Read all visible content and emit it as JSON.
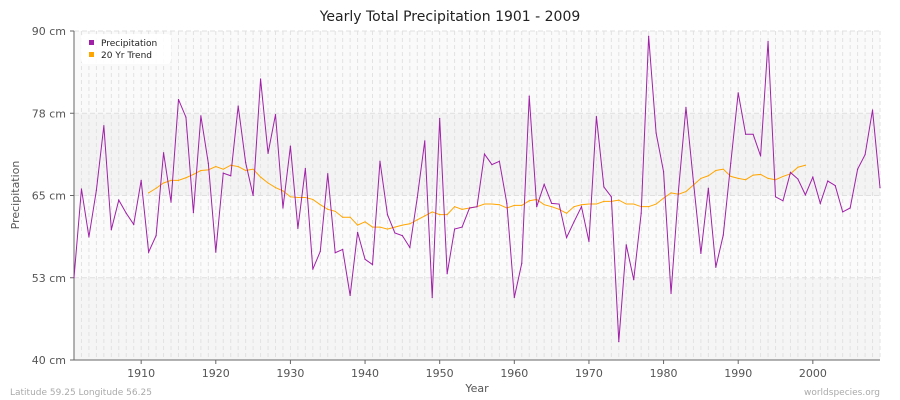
{
  "chart_data": {
    "type": "line",
    "title": "Yearly Total Precipitation 1901 - 2009",
    "xlabel": "Year",
    "ylabel": "Precipitation",
    "xlim": [
      1901,
      2009
    ],
    "ylim": [
      40,
      90
    ],
    "grid": true,
    "legend_position": "top-left",
    "y_ticks": [
      {
        "value": 40,
        "label": "40 cm"
      },
      {
        "value": 52.5,
        "label": "53 cm"
      },
      {
        "value": 65,
        "label": "65 cm"
      },
      {
        "value": 77.5,
        "label": "78 cm"
      },
      {
        "value": 90,
        "label": "90 cm"
      }
    ],
    "x_ticks": [
      {
        "value": 1910,
        "label": "1910"
      },
      {
        "value": 1920,
        "label": "1920"
      },
      {
        "value": 1930,
        "label": "1930"
      },
      {
        "value": 1940,
        "label": "1940"
      },
      {
        "value": 1950,
        "label": "1950"
      },
      {
        "value": 1960,
        "label": "1960"
      },
      {
        "value": 1970,
        "label": "1970"
      },
      {
        "value": 1980,
        "label": "1980"
      },
      {
        "value": 1990,
        "label": "1990"
      },
      {
        "value": 2000,
        "label": "2000"
      }
    ],
    "series": [
      {
        "name": "Precipitation",
        "color": "#a020a8",
        "x_start": 1901,
        "values": [
          52.5,
          66.0,
          58.7,
          65.8,
          75.6,
          59.8,
          64.3,
          62.3,
          60.6,
          67.3,
          56.4,
          58.9,
          71.5,
          64.0,
          79.6,
          76.9,
          62.4,
          77.1,
          69.9,
          56.4,
          68.4,
          68.0,
          78.6,
          70.0,
          65.0,
          82.7,
          71.4,
          77.3,
          63.1,
          72.5,
          60.0,
          69.1,
          53.8,
          56.5,
          68.3,
          56.3,
          56.8,
          49.8,
          59.4,
          55.3,
          54.5,
          70.2,
          62.1,
          59.3,
          58.9,
          57.1,
          64.7,
          73.3,
          49.5,
          76.7,
          53.1,
          59.9,
          60.2,
          63.1,
          63.3,
          71.3,
          69.7,
          70.2,
          63.8,
          49.5,
          54.7,
          80.1,
          63.3,
          66.7,
          63.8,
          63.7,
          58.6,
          61.0,
          63.3,
          58.0,
          77.0,
          66.3,
          64.8,
          42.8,
          57.5,
          52.2,
          62.3,
          89.2,
          74.5,
          68.6,
          50.1,
          65.8,
          78.4,
          67.1,
          56.2,
          66.1,
          54.1,
          59.0,
          69.9,
          80.6,
          74.3,
          74.3,
          71.0,
          88.4,
          64.8,
          64.2,
          68.5,
          67.5,
          65.1,
          67.8,
          63.8,
          67.2,
          66.5,
          62.5,
          63.1,
          69.0,
          71.2,
          78.0,
          66.2
        ]
      },
      {
        "name": "20 Yr Trend",
        "color": "#ffa500",
        "x_start": 1911,
        "values": [
          65.4,
          66.1,
          66.9,
          67.3,
          67.3,
          67.7,
          68.2,
          68.8,
          68.9,
          69.4,
          69.0,
          69.6,
          69.4,
          68.8,
          69.0,
          67.8,
          66.9,
          66.2,
          65.7,
          64.8,
          64.7,
          64.7,
          64.4,
          63.6,
          62.9,
          62.6,
          61.7,
          61.7,
          60.5,
          61.0,
          60.2,
          60.2,
          59.9,
          60.2,
          60.5,
          60.7,
          61.3,
          61.9,
          62.5,
          62.1,
          62.1,
          63.3,
          62.9,
          63.1,
          63.3,
          63.7,
          63.7,
          63.6,
          63.1,
          63.5,
          63.5,
          64.2,
          64.4,
          63.6,
          63.3,
          62.9,
          62.3,
          63.3,
          63.6,
          63.7,
          63.7,
          64.1,
          64.1,
          64.3,
          63.7,
          63.7,
          63.3,
          63.3,
          63.7,
          64.6,
          65.4,
          65.2,
          65.6,
          66.6,
          67.6,
          68.0,
          68.8,
          69.0,
          67.9,
          67.6,
          67.4,
          68.1,
          68.2,
          67.6,
          67.4,
          67.9,
          68.3,
          69.3,
          69.6
        ]
      }
    ]
  },
  "footer": {
    "location": "Latitude 59.25 Longitude 56.25",
    "site": "worldspecies.org"
  }
}
